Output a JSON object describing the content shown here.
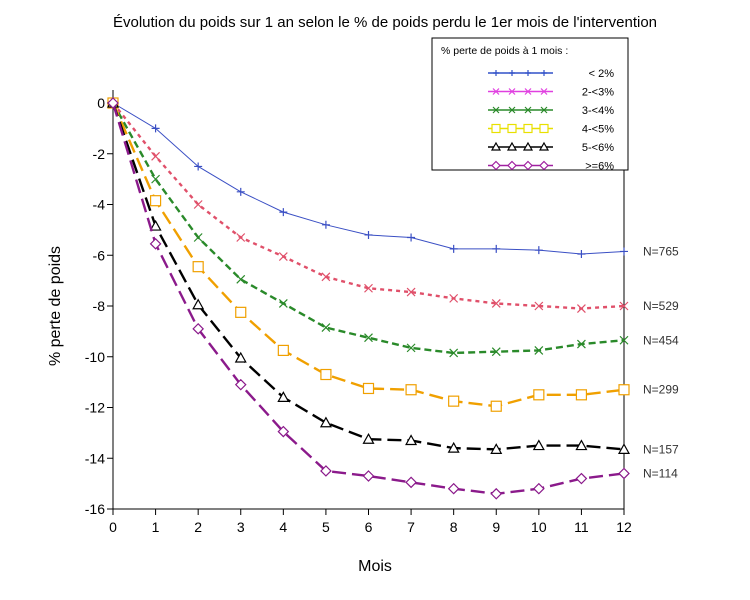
{
  "chart_data": {
    "type": "line",
    "title": "Évolution du poids sur 1 an selon le % de poids perdu le 1er mois de l'intervention",
    "xlabel": "Mois",
    "ylabel": "% perte de poids",
    "x": [
      0,
      1,
      2,
      3,
      4,
      5,
      6,
      7,
      8,
      9,
      10,
      11,
      12
    ],
    "xlim": [
      0,
      12
    ],
    "ylim": [
      -16,
      0
    ],
    "x_ticks": [
      0,
      1,
      2,
      3,
      4,
      5,
      6,
      7,
      8,
      9,
      10,
      11,
      12
    ],
    "y_ticks": [
      0,
      -2,
      -4,
      -6,
      -8,
      -10,
      -12,
      -14,
      -16
    ],
    "grid": false,
    "legend": {
      "title": "% perte de poids à 1 mois :",
      "placement": "top-right"
    },
    "series": [
      {
        "name": "< 2%",
        "color": "#3a4fc4",
        "marker": "plus",
        "dash": "solid",
        "n_label": "N=765",
        "values": [
          0,
          -1.0,
          -2.5,
          -3.5,
          -4.3,
          -4.8,
          -5.2,
          -5.3,
          -5.75,
          -5.75,
          -5.8,
          -5.95,
          -5.85
        ]
      },
      {
        "name": "2-<3%",
        "color": "#e0506a",
        "marker": "x",
        "dash": "short-dash",
        "n_label": "N=529",
        "values": [
          0,
          -2.1,
          -4.0,
          -5.3,
          -6.05,
          -6.85,
          -7.3,
          -7.45,
          -7.7,
          -7.9,
          -8.0,
          -8.1,
          -8.0
        ]
      },
      {
        "name": "3-<4%",
        "color": "#2a8a2a",
        "marker": "x",
        "dash": "dash",
        "n_label": "N=454",
        "values": [
          0,
          -3.0,
          -5.3,
          -6.95,
          -7.9,
          -8.85,
          -9.25,
          -9.65,
          -9.85,
          -9.8,
          -9.75,
          -9.5,
          -9.35
        ]
      },
      {
        "name": "4-<5%",
        "color": "#f0a000",
        "marker": "square",
        "dash": "long-dash",
        "n_label": "N=299",
        "values": [
          0,
          -3.85,
          -6.45,
          -8.25,
          -9.75,
          -10.7,
          -11.25,
          -11.3,
          -11.75,
          -11.95,
          -11.5,
          -11.5,
          -11.3
        ]
      },
      {
        "name": "5-<6%",
        "color": "#000000",
        "marker": "triangle",
        "dash": "long-dash",
        "n_label": "N=157",
        "values": [
          0,
          -4.85,
          -7.95,
          -10.05,
          -11.6,
          -12.6,
          -13.25,
          -13.3,
          -13.6,
          -13.65,
          -13.5,
          -13.5,
          -13.65
        ]
      },
      {
        "name": ">=6%",
        "color": "#8b1a8b",
        "marker": "diamond",
        "dash": "long-dash",
        "n_label": "N=114",
        "values": [
          0,
          -5.55,
          -8.9,
          -11.1,
          -12.95,
          -14.5,
          -14.7,
          -14.95,
          -15.2,
          -15.4,
          -15.2,
          -14.8,
          -14.6
        ]
      }
    ]
  },
  "legend_colors": {
    "< 2%": "#3050c8",
    "2-<3%": "#e040e0",
    "3-<4%": "#2a8a2a",
    "4-<5%": "#e8e000",
    "5-<6%": "#000000",
    ">=6%": "#a020a0"
  }
}
